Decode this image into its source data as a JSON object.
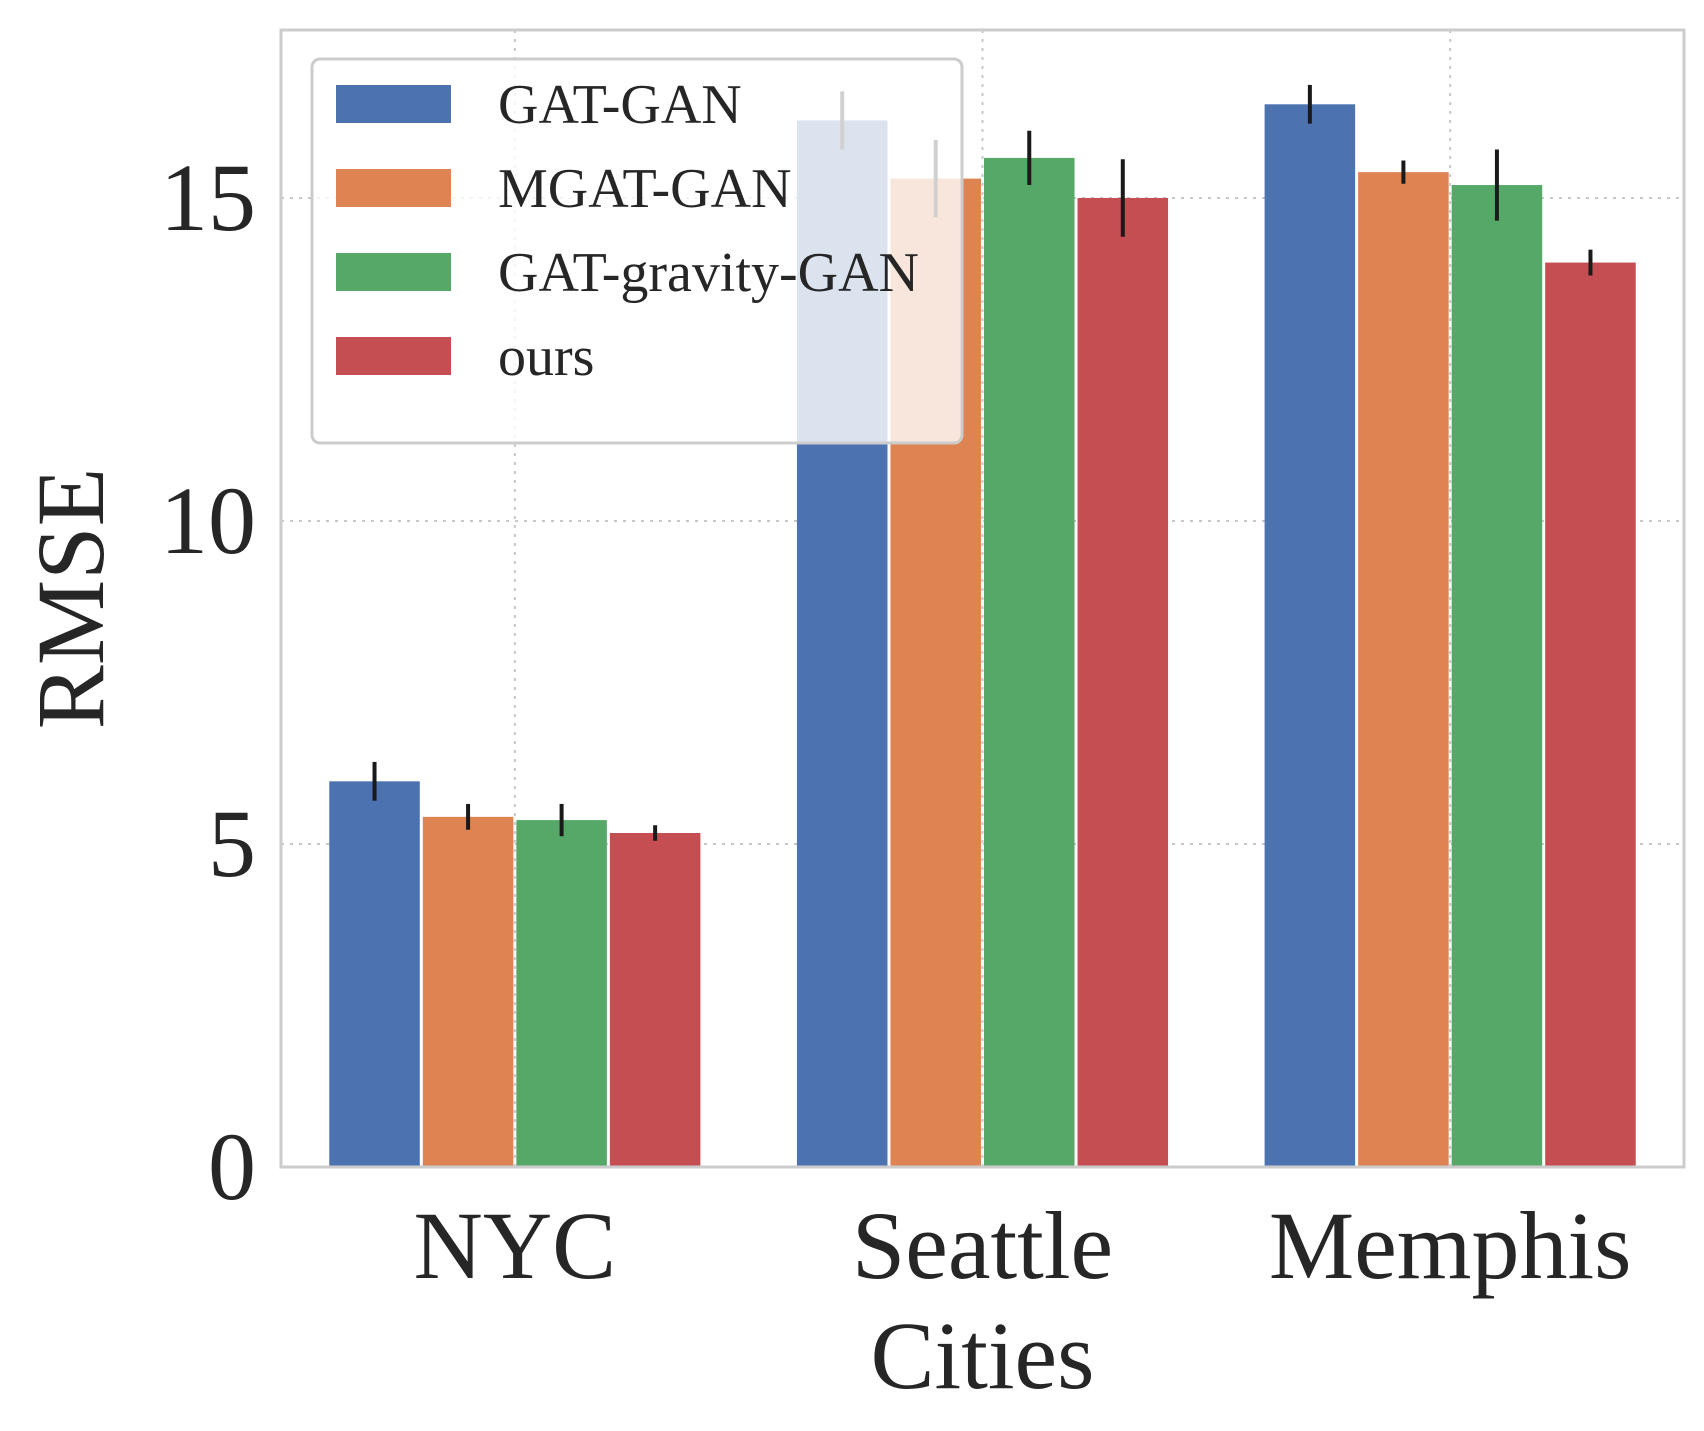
{
  "chart_data": {
    "type": "bar",
    "title": "",
    "xlabel": "Cities",
    "ylabel": "RMSE",
    "categories": [
      "NYC",
      "Seattle",
      "Memphis"
    ],
    "ylim": [
      0,
      17.6
    ],
    "yticks": [
      0,
      5,
      10,
      15
    ],
    "grid": true,
    "legend_position": "top-left",
    "series": [
      {
        "name": "GAT-GAN",
        "color": "#4c72b0",
        "values": [
          5.97,
          16.2,
          16.45
        ],
        "errors": [
          0.3,
          0.45,
          0.3
        ]
      },
      {
        "name": "MGAT-GAN",
        "color": "#dd8452",
        "values": [
          5.42,
          15.3,
          15.4
        ],
        "errors": [
          0.2,
          0.6,
          0.18
        ]
      },
      {
        "name": "GAT-gravity-GAN",
        "color": "#55a868",
        "values": [
          5.37,
          15.62,
          15.2
        ],
        "errors": [
          0.25,
          0.42,
          0.55
        ]
      },
      {
        "name": "ours",
        "color": "#c44e52",
        "values": [
          5.17,
          15.0,
          14.0
        ],
        "errors": [
          0.12,
          0.6,
          0.2
        ]
      }
    ]
  }
}
